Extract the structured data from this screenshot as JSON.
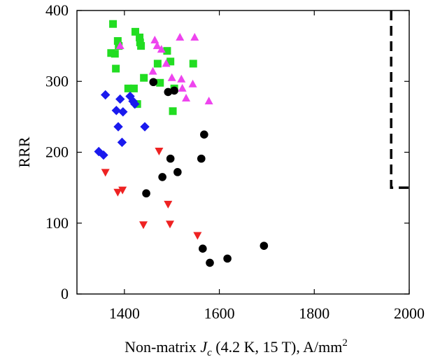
{
  "chart_data": {
    "type": "scatter",
    "title": "",
    "xlabel_parts": {
      "prefix": "Non-matrix ",
      "symbol": "J",
      "subscript": "c",
      "suffix": " (4.2 K, 15 T), A/mm",
      "superscript": "2"
    },
    "ylabel": "RRR",
    "xlim": [
      1300,
      2000
    ],
    "ylim": [
      0,
      400
    ],
    "xticks": [
      "1400",
      "1600",
      "1800",
      "2000"
    ],
    "yticks": [
      "0",
      "100",
      "200",
      "300",
      "400"
    ],
    "grid": false,
    "series": [
      {
        "marker": "square",
        "color": "#22dd22",
        "points": [
          [
            1376,
            381
          ],
          [
            1372,
            340
          ],
          [
            1380,
            339
          ],
          [
            1382,
            318
          ],
          [
            1386,
            357
          ],
          [
            1388,
            350
          ],
          [
            1408,
            290
          ],
          [
            1420,
            290
          ],
          [
            1423,
            370
          ],
          [
            1427,
            268
          ],
          [
            1432,
            362
          ],
          [
            1433,
            355
          ],
          [
            1435,
            350
          ],
          [
            1441,
            305
          ],
          [
            1470,
            325
          ],
          [
            1475,
            298
          ],
          [
            1490,
            343
          ],
          [
            1497,
            328
          ],
          [
            1502,
            258
          ],
          [
            1505,
            290
          ],
          [
            1545,
            325
          ]
        ]
      },
      {
        "marker": "triangle-up",
        "color": "#ee44ee",
        "points": [
          [
            1391,
            350
          ],
          [
            1460,
            314
          ],
          [
            1464,
            358
          ],
          [
            1469,
            350
          ],
          [
            1478,
            345
          ],
          [
            1488,
            325
          ],
          [
            1500,
            305
          ],
          [
            1517,
            362
          ],
          [
            1520,
            303
          ],
          [
            1522,
            290
          ],
          [
            1530,
            276
          ],
          [
            1544,
            296
          ],
          [
            1548,
            362
          ],
          [
            1578,
            272
          ]
        ]
      },
      {
        "marker": "diamond",
        "color": "#1a1aee",
        "points": [
          [
            1360,
            281
          ],
          [
            1346,
            201
          ],
          [
            1356,
            196
          ],
          [
            1383,
            259
          ],
          [
            1387,
            236
          ],
          [
            1391,
            275
          ],
          [
            1395,
            214
          ],
          [
            1397,
            257
          ],
          [
            1412,
            279
          ],
          [
            1418,
            272
          ],
          [
            1422,
            268
          ],
          [
            1443,
            236
          ]
        ]
      },
      {
        "marker": "triangle-down",
        "color": "#ee2222",
        "points": [
          [
            1360,
            172
          ],
          [
            1386,
            144
          ],
          [
            1396,
            147
          ],
          [
            1440,
            98
          ],
          [
            1473,
            202
          ],
          [
            1492,
            127
          ],
          [
            1496,
            99
          ],
          [
            1554,
            83
          ]
        ]
      },
      {
        "marker": "circle",
        "color": "#000000",
        "points": [
          [
            1446,
            142
          ],
          [
            1461,
            299
          ],
          [
            1480,
            165
          ],
          [
            1492,
            285
          ],
          [
            1497,
            191
          ],
          [
            1505,
            287
          ],
          [
            1512,
            172
          ],
          [
            1562,
            191
          ],
          [
            1568,
            225
          ],
          [
            1565,
            64
          ],
          [
            1580,
            44
          ],
          [
            1617,
            50
          ],
          [
            1694,
            68
          ]
        ]
      }
    ],
    "reference_line": {
      "style": "dashed",
      "color": "#000000",
      "points": [
        [
          1962,
          400
        ],
        [
          1962,
          150
        ],
        [
          2000,
          150
        ]
      ]
    }
  }
}
